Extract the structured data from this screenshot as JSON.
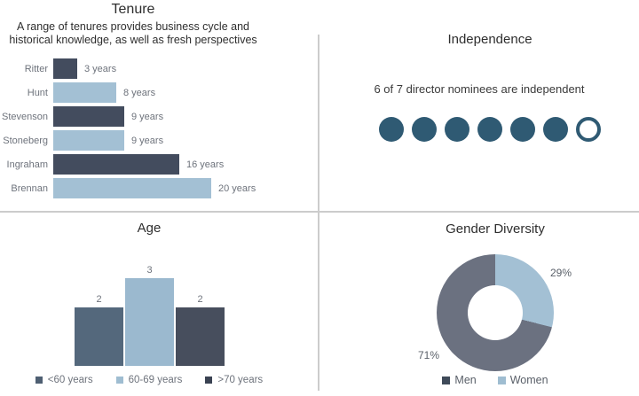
{
  "colors": {
    "divider": "#CCCCCC",
    "title_text": "#2E2E2E",
    "label_text": "#6E737C"
  },
  "chart_data": [
    {
      "id": "tenure",
      "type": "bar",
      "orientation": "horizontal",
      "title": "Tenure",
      "subtitle": "A range of tenures provides business cycle and historical knowledge, as well as fresh perspectives",
      "subtitle_line1": "A range of tenures provides business cycle and",
      "subtitle_line2": "historical knowledge, as well as fresh perspectives",
      "categories": [
        "Ritter",
        "Hunt",
        "Stevenson",
        "Stoneberg",
        "Ingraham",
        "Brennan"
      ],
      "values": [
        3,
        8,
        9,
        9,
        16,
        20
      ],
      "value_labels": [
        "3 years",
        "8 years",
        "9 years",
        "9 years",
        "16 years",
        "20 years"
      ],
      "bar_colors": [
        "#434C5E",
        "#A3C0D4",
        "#434C5E",
        "#A3C0D4",
        "#434C5E",
        "#A3C0D4"
      ],
      "xlim": [
        0,
        20
      ],
      "grid": false,
      "legend_position": "none"
    },
    {
      "id": "independence",
      "type": "pictogram",
      "title": "Independence",
      "caption": "6 of 7 director nominees are independent",
      "total": 7,
      "filled": 6,
      "filled_color": "#2F5A73",
      "empty_style": "outlined-circle"
    },
    {
      "id": "age",
      "type": "bar",
      "orientation": "vertical",
      "title": "Age",
      "categories": [
        "<60 years",
        "60-69 years",
        ">70 years"
      ],
      "values": [
        2,
        3,
        2
      ],
      "data_labels": [
        "2",
        "3",
        "2"
      ],
      "bar_colors": [
        "#54687C",
        "#9BB9CF",
        "#474E5D"
      ],
      "legend_colors": [
        "#4E5F72",
        "#9FBDD1",
        "#3A4252"
      ],
      "ylim": [
        0,
        3
      ],
      "grid": false,
      "legend_position": "bottom"
    },
    {
      "id": "gender",
      "type": "donut",
      "title": "Gender Diversity",
      "slices": [
        {
          "label": "Men",
          "value": 71,
          "pct_label": "71%",
          "color": "#6B7180",
          "legend_color": "#3F4A59"
        },
        {
          "label": "Women",
          "value": 29,
          "pct_label": "29%",
          "color": "#A3C0D4",
          "legend_color": "#9FBDD1"
        }
      ],
      "start_angle": "top",
      "direction": "clockwise",
      "legend_position": "bottom"
    }
  ]
}
